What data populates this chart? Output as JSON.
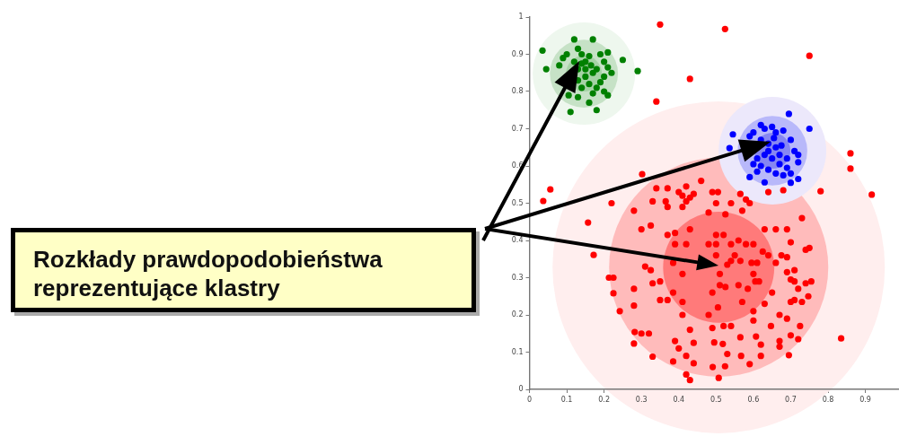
{
  "chart_data": {
    "type": "scatter",
    "marker": "circle",
    "grid": false,
    "legend": false,
    "xlim": [
      0,
      0.99
    ],
    "xticks": [
      0,
      0.1,
      0.2,
      0.3,
      0.4,
      0.5,
      0.6,
      0.7,
      0.8,
      0.9
    ],
    "ylim": [
      0,
      1
    ],
    "yticks": [
      0,
      0.1,
      0.2,
      0.3,
      0.4,
      0.5,
      0.6,
      0.7,
      0.8,
      0.9,
      1
    ],
    "annotations": [
      "Rozkłady prawdopodobieństwa reprezentujące klastry"
    ],
    "series": [
      {
        "type": "bubble",
        "x": [
          0.507,
          0.507,
          0.507
        ],
        "values": [
          0.328,
          0.328,
          0.328
        ],
        "sizes": [
          1,
          0.435,
          0.112
        ],
        "colors": [
          "#ffeeee",
          "#ffbbbb",
          "#ff7a7a"
        ]
      },
      {
        "type": "bubble",
        "x": [
          0.651,
          0.651,
          0.651
        ],
        "values": [
          0.641,
          0.641,
          0.641
        ],
        "sizes": [
          0.105,
          0.044,
          0.0117
        ],
        "colors": [
          "#ece8fb",
          "#b8b8fa",
          "#8686f2"
        ]
      },
      {
        "type": "bubble",
        "x": [
          0.146,
          0.146,
          0.146
        ],
        "values": [
          0.848,
          0.848,
          0.848
        ],
        "sizes": [
          0.095,
          0.042,
          0.0117
        ],
        "colors": [
          "#eef7ee",
          "#c6e2c6",
          "#a6d2a6"
        ]
      },
      {
        "color": "#ff0000",
        "x": [
          0.35,
          0.524,
          0.75,
          0.43,
          0.34,
          0.86,
          0.86,
          0.917,
          0.78,
          0.73,
          0.037,
          0.056,
          0.157,
          0.172,
          0.835,
          0.302,
          0.213,
          0.225,
          0.225,
          0.242,
          0.28,
          0.28,
          0.282,
          0.28,
          0.3,
          0.32,
          0.33,
          0.31,
          0.325,
          0.3,
          0.325,
          0.33,
          0.35,
          0.35,
          0.37,
          0.37,
          0.39,
          0.39,
          0.385,
          0.385,
          0.39,
          0.385,
          0.4,
          0.41,
          0.41,
          0.41,
          0.42,
          0.42,
          0.43,
          0.43,
          0.44,
          0.44,
          0.43,
          0.42,
          0.507,
          0.491,
          0.524,
          0.495,
          0.518,
          0.53,
          0.565,
          0.567,
          0.59,
          0.607,
          0.62,
          0.62,
          0.647,
          0.67,
          0.67,
          0.695,
          0.7,
          0.72,
          0.725,
          0.69,
          0.67,
          0.7,
          0.71,
          0.73,
          0.747,
          0.72,
          0.74,
          0.755,
          0.71,
          0.7,
          0.69,
          0.71,
          0.69,
          0.675,
          0.74,
          0.75,
          0.7,
          0.69,
          0.66,
          0.63,
          0.66,
          0.65,
          0.63,
          0.6,
          0.57,
          0.6,
          0.54,
          0.52,
          0.49,
          0.505,
          0.48,
          0.49,
          0.51,
          0.51,
          0.525,
          0.56,
          0.585,
          0.605,
          0.615,
          0.6,
          0.595,
          0.61,
          0.565,
          0.54,
          0.55,
          0.5,
          0.53,
          0.58,
          0.6,
          0.56,
          0.54,
          0.5,
          0.48,
          0.5,
          0.52,
          0.625,
          0.64,
          0.34,
          0.37,
          0.33,
          0.365,
          0.37,
          0.28,
          0.22,
          0.4,
          0.42,
          0.41,
          0.46,
          0.42,
          0.41,
          0.43,
          0.44,
          0.49,
          0.505,
          0.565,
          0.58,
          0.54,
          0.5,
          0.59,
          0.64,
          0.68,
          0.57,
          0.525,
          0.48
        ],
        "values": [
          0.98,
          0.968,
          0.896,
          0.834,
          0.773,
          0.634,
          0.593,
          0.523,
          0.532,
          0.46,
          0.506,
          0.537,
          0.448,
          0.361,
          0.137,
          0.578,
          0.3,
          0.3,
          0.258,
          0.21,
          0.27,
          0.225,
          0.154,
          0.123,
          0.15,
          0.15,
          0.088,
          0.33,
          0.32,
          0.43,
          0.44,
          0.285,
          0.29,
          0.24,
          0.24,
          0.415,
          0.42,
          0.39,
          0.34,
          0.26,
          0.13,
          0.075,
          0.11,
          0.31,
          0.235,
          0.2,
          0.04,
          0.09,
          0.16,
          0.025,
          0.07,
          0.125,
          0.43,
          0.39,
          0.031,
          0.06,
          0.062,
          0.126,
          0.122,
          0.095,
          0.14,
          0.09,
          0.068,
          0.142,
          0.12,
          0.09,
          0.17,
          0.13,
          0.115,
          0.092,
          0.145,
          0.135,
          0.17,
          0.19,
          0.2,
          0.235,
          0.24,
          0.235,
          0.25,
          0.27,
          0.285,
          0.29,
          0.29,
          0.295,
          0.315,
          0.32,
          0.355,
          0.36,
          0.375,
          0.38,
          0.395,
          0.43,
          0.43,
          0.43,
          0.34,
          0.26,
          0.23,
          0.21,
          0.235,
          0.185,
          0.17,
          0.17,
          0.165,
          0.22,
          0.2,
          0.26,
          0.28,
          0.31,
          0.275,
          0.28,
          0.27,
          0.29,
          0.29,
          0.31,
          0.34,
          0.34,
          0.345,
          0.345,
          0.36,
          0.36,
          0.335,
          0.39,
          0.39,
          0.4,
          0.39,
          0.39,
          0.39,
          0.415,
          0.415,
          0.37,
          0.36,
          0.54,
          0.54,
          0.505,
          0.505,
          0.49,
          0.48,
          0.5,
          0.53,
          0.505,
          0.49,
          0.56,
          0.545,
          0.52,
          0.515,
          0.525,
          0.53,
          0.53,
          0.525,
          0.51,
          0.5,
          0.5,
          0.5,
          0.53,
          0.535,
          0.48,
          0.47,
          0.475
        ]
      },
      {
        "color": "#0000ff",
        "x": [
          0.695,
          0.75,
          0.536,
          0.545,
          0.72,
          0.59,
          0.63,
          0.72,
          0.6,
          0.62,
          0.63,
          0.65,
          0.66,
          0.68,
          0.7,
          0.71,
          0.72,
          0.69,
          0.67,
          0.66,
          0.64,
          0.62,
          0.61,
          0.63,
          0.65,
          0.67,
          0.69,
          0.7,
          0.68,
          0.66,
          0.64,
          0.62,
          0.6,
          0.59,
          0.64,
          0.655,
          0.61,
          0.675,
          0.7
        ],
        "values": [
          0.74,
          0.7,
          0.648,
          0.685,
          0.565,
          0.57,
          0.556,
          0.61,
          0.69,
          0.71,
          0.7,
          0.705,
          0.69,
          0.695,
          0.67,
          0.64,
          0.63,
          0.62,
          0.63,
          0.65,
          0.66,
          0.67,
          0.62,
          0.63,
          0.62,
          0.605,
          0.595,
          0.58,
          0.575,
          0.58,
          0.59,
          0.6,
          0.605,
          0.68,
          0.64,
          0.675,
          0.585,
          0.655,
          0.555
        ]
      },
      {
        "color": "#008000",
        "x": [
          0.035,
          0.045,
          0.12,
          0.17,
          0.25,
          0.29,
          0.11,
          0.18,
          0.16,
          0.105,
          0.08,
          0.1,
          0.13,
          0.14,
          0.15,
          0.16,
          0.19,
          0.21,
          0.2,
          0.21,
          0.22,
          0.2,
          0.18,
          0.17,
          0.15,
          0.13,
          0.12,
          0.09,
          0.13,
          0.14,
          0.16,
          0.18,
          0.2,
          0.21,
          0.17,
          0.13,
          0.15,
          0.165,
          0.19,
          0.14
        ],
        "values": [
          0.91,
          0.86,
          0.94,
          0.94,
          0.885,
          0.855,
          0.745,
          0.75,
          0.77,
          0.79,
          0.87,
          0.9,
          0.915,
          0.9,
          0.88,
          0.895,
          0.9,
          0.905,
          0.88,
          0.865,
          0.85,
          0.84,
          0.86,
          0.85,
          0.86,
          0.86,
          0.88,
          0.89,
          0.83,
          0.81,
          0.82,
          0.81,
          0.8,
          0.79,
          0.795,
          0.785,
          0.84,
          0.87,
          0.825,
          0.875
        ]
      }
    ]
  }
}
